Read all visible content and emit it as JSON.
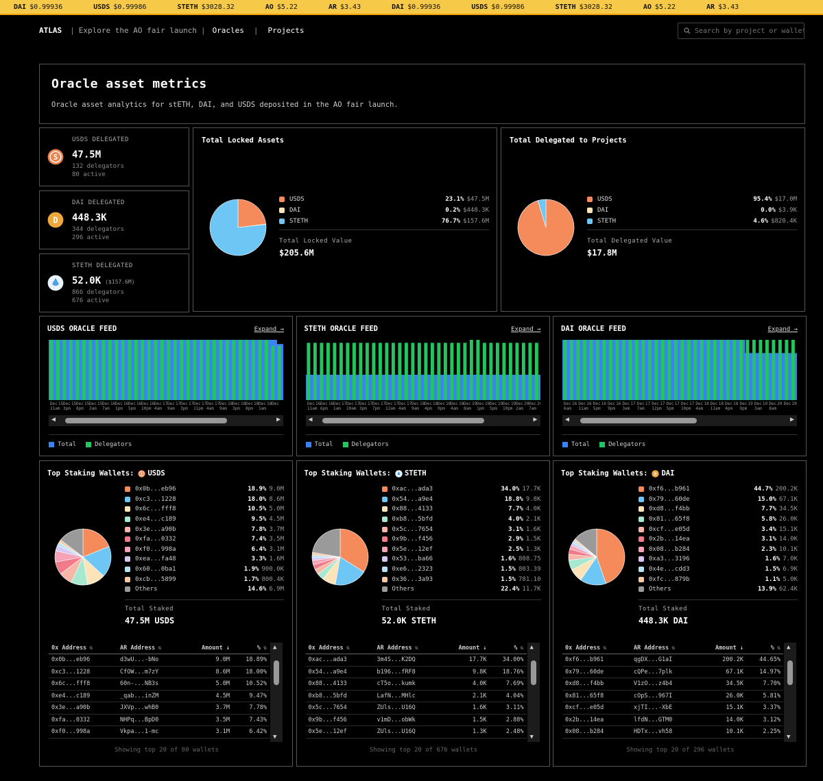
{
  "ticker": [
    {
      "sym": "DAI",
      "val": "$0.99936"
    },
    {
      "sym": "USDS",
      "val": "$0.99986"
    },
    {
      "sym": "STETH",
      "val": "$3028.32"
    },
    {
      "sym": "AO",
      "val": "$5.22"
    },
    {
      "sym": "AR",
      "val": "$3.43"
    },
    {
      "sym": "DAI",
      "val": "$0.99936"
    },
    {
      "sym": "USDS",
      "val": "$0.99986"
    },
    {
      "sym": "STETH",
      "val": "$3028.32"
    },
    {
      "sym": "AO",
      "val": "$5.22"
    },
    {
      "sym": "AR",
      "val": "$3.43"
    }
  ],
  "nav": {
    "brand": "ATLAS",
    "explore": "Explore the AO fair launch",
    "oracles": "Oracles",
    "projects": "Projects",
    "sep": "|"
  },
  "search": {
    "placeholder": "Search by project or wallet"
  },
  "header": {
    "title": "Oracle asset metrics",
    "subtitle": "Oracle asset analytics for stETH, DAI, and USDS deposited in the AO fair launch."
  },
  "colors": {
    "usds": "#f58b5b",
    "dai": "#fce3b8",
    "steth": "#6ec6f5",
    "total": "#3b82f6",
    "delegators": "#22c55e"
  },
  "stats": [
    {
      "label": "USDS DELEGATED",
      "value": "47.5M",
      "extra": "",
      "delegators": "132 delegators",
      "active": "80 active",
      "icon": "usds-coin-icon"
    },
    {
      "label": "DAI DELEGATED",
      "value": "448.3K",
      "extra": "",
      "delegators": "344 delegators",
      "active": "296 active",
      "icon": "dai-coin-icon"
    },
    {
      "label": "STETH DELEGATED",
      "value": "52.0K",
      "extra": "($157.6M)",
      "delegators": "866 delegators",
      "active": "676 active",
      "icon": "steth-coin-icon"
    }
  ],
  "locked": {
    "title": "Total Locked Assets",
    "items": [
      {
        "name": "USDS",
        "pct": "23.1%",
        "amt": "$47.5M",
        "v": 23.1
      },
      {
        "name": "DAI",
        "pct": "0.2%",
        "amt": "$448.3K",
        "v": 0.2
      },
      {
        "name": "STETH",
        "pct": "76.7%",
        "amt": "$157.6M",
        "v": 76.7
      }
    ],
    "total_label": "Total Locked Value",
    "total": "$205.6M"
  },
  "delegated": {
    "title": "Total Delegated to Projects",
    "items": [
      {
        "name": "USDS",
        "pct": "95.4%",
        "amt": "$17.0M",
        "v": 95.4
      },
      {
        "name": "DAI",
        "pct": "0.0%",
        "amt": "$3.9K",
        "v": 0.02
      },
      {
        "name": "STETH",
        "pct": "4.6%",
        "amt": "$820.4K",
        "v": 4.6
      }
    ],
    "total_label": "Total Delegated Value",
    "total": "$17.8M"
  },
  "feeds": [
    {
      "title": "USDS ORACLE FEED",
      "expand": "Expand →",
      "legend_total": "Total",
      "legend_delegators": "Delegators",
      "ticks_top": [
        "Dec",
        "Dec",
        "Dec",
        "Dec",
        "Dec",
        "Dec",
        "Dec",
        "Dec",
        "Dec",
        "Dec",
        "Dec",
        "Dec",
        "Dec",
        "Dec",
        "Dec",
        "Dec",
        "Dec",
        "Dec"
      ],
      "ticks_date": [
        "15",
        "15",
        "15",
        "15",
        "16",
        "16",
        "16",
        "16",
        "17",
        "17",
        "17",
        "17",
        "17",
        "18",
        "18",
        "18",
        "18",
        ""
      ],
      "ticks_time": [
        "11am",
        "3pm",
        "8pm",
        "2am",
        "7am",
        "1pm",
        "5pm",
        "10pm",
        "4am",
        "9am",
        "3pm",
        "11pm",
        "4am",
        "9am",
        "3pm",
        "8pm",
        "1am",
        ""
      ],
      "chart_data": {
        "type": "bar",
        "bars": 36,
        "total": [
          100,
          100,
          100,
          100,
          100,
          100,
          100,
          100,
          100,
          100,
          100,
          100,
          100,
          100,
          100,
          100,
          100,
          100,
          100,
          100,
          100,
          100,
          100,
          100,
          100,
          100,
          100,
          100,
          100,
          100,
          100,
          100,
          100,
          100,
          100,
          93
        ],
        "delegators": [
          100,
          100,
          100,
          100,
          100,
          100,
          100,
          100,
          100,
          100,
          100,
          100,
          100,
          100,
          100,
          100,
          100,
          100,
          100,
          100,
          100,
          100,
          100,
          100,
          100,
          100,
          100,
          100,
          100,
          100,
          100,
          100,
          100,
          100,
          90,
          90
        ]
      }
    },
    {
      "title": "STETH ORACLE FEED",
      "expand": "Expand →",
      "legend_total": "Total",
      "legend_delegators": "Delegators",
      "ticks_top": [
        "Dec",
        "Dec",
        "Dec",
        "Dec",
        "Dec",
        "Dec",
        "Dec",
        "Dec",
        "Dec",
        "Dec",
        "Dec",
        "Dec",
        "Dec",
        "Dec",
        "Dec",
        "Dec",
        "Dec",
        "Dec"
      ],
      "ticks_date": [
        "16",
        "16",
        "17",
        "17",
        "17",
        "17",
        "17",
        "17",
        "18",
        "18",
        "18",
        "18",
        "19",
        "19",
        "19",
        "19",
        "20",
        "20"
      ],
      "ticks_time": [
        "11am",
        "6pm",
        "1am",
        "10am",
        "3pm",
        "7pm",
        "12am",
        "4am",
        "9am",
        "4pm",
        "9pm",
        "4am",
        "8am",
        "1pm",
        "5pm",
        "10pm",
        "2am",
        "7am"
      ],
      "chart_data": {
        "type": "bar",
        "bars": 36,
        "total": [
          42,
          42,
          42,
          42,
          42,
          42,
          42,
          42,
          42,
          42,
          42,
          42,
          42,
          42,
          42,
          42,
          42,
          42,
          42,
          42,
          42,
          42,
          42,
          42,
          42,
          42,
          42,
          42,
          42,
          42,
          42,
          42,
          42,
          42,
          42,
          42
        ],
        "delegators": [
          95,
          95,
          95,
          95,
          95,
          95,
          95,
          95,
          95,
          95,
          95,
          95,
          95,
          95,
          95,
          95,
          95,
          95,
          95,
          95,
          95,
          95,
          95,
          95,
          95,
          100,
          100,
          95,
          95,
          95,
          95,
          95,
          95,
          95,
          95,
          95
        ]
      }
    },
    {
      "title": "DAI ORACLE FEED",
      "expand": "Expand →",
      "legend_total": "Total",
      "legend_delegators": "Delegators",
      "ticks_top": [
        "Dec",
        "Dec",
        "Dec",
        "Dec",
        "Dec",
        "Dec",
        "Dec",
        "Dec",
        "Dec",
        "Dec",
        "Dec",
        "Dec",
        "Dec",
        "Dec",
        "Dec",
        "Dec"
      ],
      "ticks_date": [
        "16",
        "16",
        "16",
        "16",
        "17",
        "17",
        "17",
        "17",
        "17",
        "18",
        "18",
        "18",
        "19",
        "19",
        "20",
        "20"
      ],
      "ticks_time": [
        "6am",
        "11am",
        "5pm",
        "9pm",
        "3am",
        "7am",
        "12pm",
        "5pm",
        "10pm",
        "4am",
        "11am",
        "4pm",
        "9pm",
        "3am",
        "8am",
        ""
      ],
      "chart_data": {
        "type": "bar",
        "bars": 36,
        "total": [
          100,
          100,
          100,
          100,
          100,
          100,
          100,
          100,
          100,
          100,
          100,
          100,
          100,
          100,
          100,
          100,
          100,
          100,
          100,
          100,
          100,
          100,
          100,
          100,
          100,
          100,
          100,
          100,
          78,
          78,
          78,
          78,
          78,
          78,
          78,
          78
        ],
        "delegators": [
          100,
          100,
          100,
          100,
          100,
          100,
          100,
          100,
          100,
          100,
          100,
          100,
          100,
          100,
          100,
          100,
          100,
          100,
          100,
          100,
          100,
          100,
          100,
          100,
          100,
          100,
          100,
          100,
          100,
          100,
          100,
          100,
          100,
          100,
          100,
          100
        ]
      }
    }
  ],
  "wallets": [
    {
      "title": "Top Staking Wallets:",
      "coin": "USDS",
      "coin_icon": "usds-coin-icon",
      "items": [
        {
          "name": "0x0b...eb96",
          "pct": "18.9%",
          "amt": "9.0M",
          "v": 18.9,
          "c": "#f58b5b"
        },
        {
          "name": "0xc3...1228",
          "pct": "18.0%",
          "amt": "8.6M",
          "v": 18.0,
          "c": "#6ec6f5"
        },
        {
          "name": "0x6c...fff8",
          "pct": "10.5%",
          "amt": "5.0M",
          "v": 10.5,
          "c": "#fce3b8"
        },
        {
          "name": "0xe4...c189",
          "pct": "9.5%",
          "amt": "4.5M",
          "v": 9.5,
          "c": "#a7e8d0"
        },
        {
          "name": "0x3e...a90b",
          "pct": "7.8%",
          "amt": "3.7M",
          "v": 7.8,
          "c": "#f7b6a8"
        },
        {
          "name": "0xfa...0332",
          "pct": "7.4%",
          "amt": "3.5M",
          "v": 7.4,
          "c": "#f27b8a"
        },
        {
          "name": "0xf0...998a",
          "pct": "6.4%",
          "amt": "3.1M",
          "v": 6.4,
          "c": "#f5a3b5"
        },
        {
          "name": "0xea...fa48",
          "pct": "3.3%",
          "amt": "1.6M",
          "v": 3.3,
          "c": "#d6c8f5"
        },
        {
          "name": "0x60...0ba1",
          "pct": "1.9%",
          "amt": "900.0K",
          "v": 1.9,
          "c": "#b7e4f2"
        },
        {
          "name": "0xcb...5899",
          "pct": "1.7%",
          "amt": "800.4K",
          "v": 1.7,
          "c": "#f9c9a6"
        },
        {
          "name": "Others",
          "pct": "14.6%",
          "amt": "6.9M",
          "v": 14.6,
          "c": "#9a9a9a"
        }
      ],
      "total_label": "Total Staked",
      "total": "47.5M USDS",
      "cols": [
        "0x Address",
        "AR Address",
        "Amount ↓",
        "%"
      ],
      "rows": [
        [
          "0x0b...eb96",
          "d3wU...-bNo",
          "9.0M",
          "18.89%"
        ],
        [
          "0xc3...1228",
          "CfOW...m7zY",
          "8.6M",
          "18.00%"
        ],
        [
          "0x6c...fff8",
          "60n-...NB3s",
          "5.0M",
          "10.52%"
        ],
        [
          "0xe4...c189",
          "_qab...inZM",
          "4.5M",
          "9.47%"
        ],
        [
          "0x3e...a90b",
          "JXVp...whB0",
          "3.7M",
          "7.78%"
        ],
        [
          "0xfa...0332",
          "NHPq...BpD0",
          "3.5M",
          "7.43%"
        ],
        [
          "0xf0...998a",
          "Vkpa...1-mc",
          "3.1M",
          "6.42%"
        ]
      ],
      "footer": "Showing top 20 of 80 wallets"
    },
    {
      "title": "Top Staking Wallets:",
      "coin": "STETH",
      "coin_icon": "steth-coin-icon",
      "items": [
        {
          "name": "0xac...ada3",
          "pct": "34.0%",
          "amt": "17.7K",
          "v": 34.0,
          "c": "#f58b5b"
        },
        {
          "name": "0x54...a9e4",
          "pct": "18.8%",
          "amt": "9.8K",
          "v": 18.8,
          "c": "#6ec6f5"
        },
        {
          "name": "0x88...4133",
          "pct": "7.7%",
          "amt": "4.0K",
          "v": 7.7,
          "c": "#fce3b8"
        },
        {
          "name": "0xb8...5bfd",
          "pct": "4.0%",
          "amt": "2.1K",
          "v": 4.0,
          "c": "#a7e8d0"
        },
        {
          "name": "0x5c...7654",
          "pct": "3.1%",
          "amt": "1.6K",
          "v": 3.1,
          "c": "#f7b6a8"
        },
        {
          "name": "0x9b...f456",
          "pct": "2.9%",
          "amt": "1.5K",
          "v": 2.9,
          "c": "#f27b8a"
        },
        {
          "name": "0x5e...12ef",
          "pct": "2.5%",
          "amt": "1.3K",
          "v": 2.5,
          "c": "#f5a3b5"
        },
        {
          "name": "0x53...ba66",
          "pct": "1.6%",
          "amt": "808.75",
          "v": 1.6,
          "c": "#d6c8f5"
        },
        {
          "name": "0xe6...2323",
          "pct": "1.5%",
          "amt": "803.39",
          "v": 1.5,
          "c": "#b7e4f2"
        },
        {
          "name": "0x36...3a93",
          "pct": "1.5%",
          "amt": "781.10",
          "v": 1.5,
          "c": "#f9c9a6"
        },
        {
          "name": "Others",
          "pct": "22.4%",
          "amt": "11.7K",
          "v": 22.4,
          "c": "#9a9a9a"
        }
      ],
      "total_label": "Total Staked",
      "total": "52.0K STETH",
      "cols": [
        "0x Address",
        "AR Address",
        "Amount ↓",
        "%"
      ],
      "rows": [
        [
          "0xac...ada3",
          "3m4S...K2DQ",
          "17.7K",
          "34.00%"
        ],
        [
          "0x54...a9e4",
          "b196...fRF8",
          "9.8K",
          "18.76%"
        ],
        [
          "0x88...4133",
          "cT5o...kumk",
          "4.0K",
          "7.69%"
        ],
        [
          "0xb8...5bfd",
          "LafN...MHlc",
          "2.1K",
          "4.04%"
        ],
        [
          "0x5c...7654",
          "ZUls...U16Q",
          "1.6K",
          "3.11%"
        ],
        [
          "0x9b...f456",
          "v1mD...obWk",
          "1.5K",
          "2.88%"
        ],
        [
          "0x5e...12ef",
          "ZUls...U16Q",
          "1.3K",
          "2.48%"
        ]
      ],
      "footer": "Showing top 20 of 676 wallets"
    },
    {
      "title": "Top Staking Wallets:",
      "coin": "DAI",
      "coin_icon": "dai-coin-icon",
      "items": [
        {
          "name": "0xf6...b961",
          "pct": "44.7%",
          "amt": "200.2K",
          "v": 44.7,
          "c": "#f58b5b"
        },
        {
          "name": "0x79...60de",
          "pct": "15.0%",
          "amt": "67.1K",
          "v": 15.0,
          "c": "#6ec6f5"
        },
        {
          "name": "0xd8...f4bb",
          "pct": "7.7%",
          "amt": "34.5K",
          "v": 7.7,
          "c": "#fce3b8"
        },
        {
          "name": "0x81...65f8",
          "pct": "5.8%",
          "amt": "26.0K",
          "v": 5.8,
          "c": "#a7e8d0"
        },
        {
          "name": "0xcf...e05d",
          "pct": "3.4%",
          "amt": "15.1K",
          "v": 3.4,
          "c": "#f7b6a8"
        },
        {
          "name": "0x2b...14ea",
          "pct": "3.1%",
          "amt": "14.0K",
          "v": 3.1,
          "c": "#f27b8a"
        },
        {
          "name": "0x08...b284",
          "pct": "2.3%",
          "amt": "10.1K",
          "v": 2.3,
          "c": "#f5a3b5"
        },
        {
          "name": "0xa3...3196",
          "pct": "1.6%",
          "amt": "7.0K",
          "v": 1.6,
          "c": "#d6c8f5"
        },
        {
          "name": "0x4e...cdd3",
          "pct": "1.5%",
          "amt": "6.9K",
          "v": 1.5,
          "c": "#b7e4f2"
        },
        {
          "name": "0xfc...879b",
          "pct": "1.1%",
          "amt": "5.0K",
          "v": 1.1,
          "c": "#f9c9a6"
        },
        {
          "name": "Others",
          "pct": "13.9%",
          "amt": "62.4K",
          "v": 13.9,
          "c": "#9a9a9a"
        }
      ],
      "total_label": "Total Staked",
      "total": "448.3K DAI",
      "cols": [
        "0x Address",
        "AR Address",
        "Amount ↓",
        "%"
      ],
      "rows": [
        [
          "0xf6...b961",
          "qgDX...G1aI",
          "200.2K",
          "44.65%"
        ],
        [
          "0x79...60de",
          "cQPe...7plk",
          "67.1K",
          "14.97%"
        ],
        [
          "0xd8...f4bb",
          "V1zO...z4b4",
          "34.5K",
          "7.70%"
        ],
        [
          "0x81...65f8",
          "cOpS...967I",
          "26.0K",
          "5.81%"
        ],
        [
          "0xcf...e05d",
          "xjTI...-XbE",
          "15.1K",
          "3.37%"
        ],
        [
          "0x2b...14ea",
          "lfdN...GTM0",
          "14.0K",
          "3.12%"
        ],
        [
          "0x08...b284",
          "HDTx...vh58",
          "10.1K",
          "2.25%"
        ]
      ],
      "footer": "Showing top 20 of 296 wallets"
    }
  ]
}
